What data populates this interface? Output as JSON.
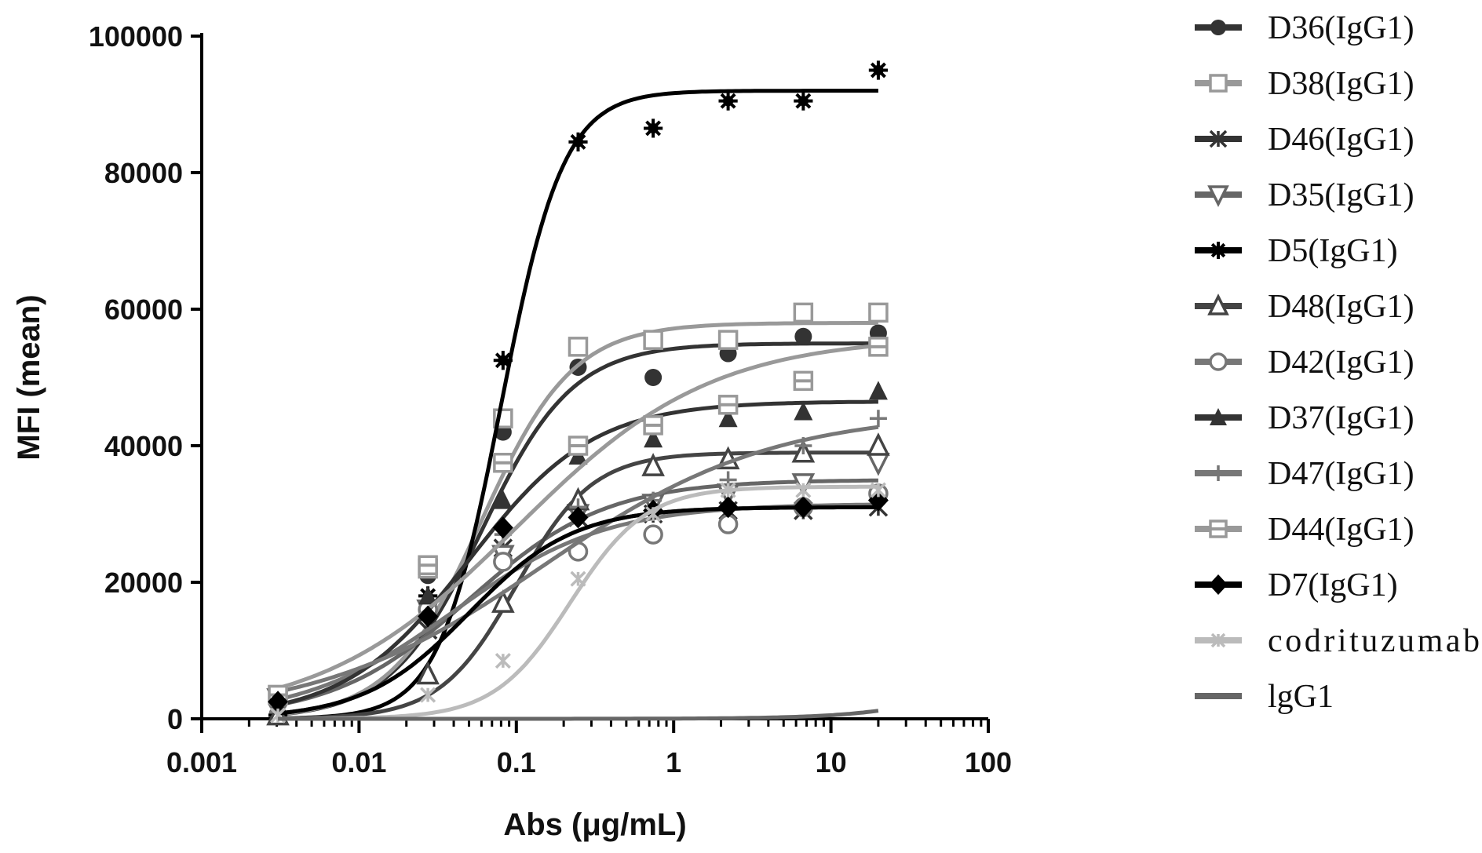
{
  "chart_data": {
    "type": "scatter",
    "title": "",
    "xlabel": "Abs (μg/mL)",
    "ylabel": "MFI (mean)",
    "xscale": "log",
    "xlim": [
      0.001,
      100
    ],
    "ylim": [
      0,
      100000
    ],
    "xticks": [
      "0.001",
      "0.01",
      "0.1",
      "1",
      "10",
      "100"
    ],
    "yticks": [
      "0",
      "20000",
      "40000",
      "60000",
      "80000",
      "100000"
    ],
    "grid": false,
    "legend_position": "right",
    "x": [
      0.00305,
      0.0274,
      0.0823,
      0.247,
      0.741,
      2.22,
      6.67,
      20
    ],
    "series": [
      {
        "name": "D36(IgG1)",
        "marker": "circle",
        "color": "#333333",
        "values": [
          3000,
          21000,
          42000,
          51500,
          50000,
          53500,
          56000,
          56500
        ],
        "fit": {
          "top": 55000,
          "ec50": 0.06,
          "hill": 1.5
        }
      },
      {
        "name": "D38(IgG1)",
        "marker": "square-open",
        "color": "#999999",
        "values": [
          3500,
          22000,
          44000,
          54500,
          55500,
          55500,
          59500,
          59500
        ],
        "fit": {
          "top": 58000,
          "ec50": 0.06,
          "hill": 1.5
        }
      },
      {
        "name": "D46(IgG1)",
        "marker": "star",
        "color": "#333333",
        "values": [
          1000,
          13000,
          25000,
          29500,
          30000,
          30500,
          30500,
          31000
        ],
        "fit": {
          "top": 31000,
          "ec50": 0.05,
          "hill": 1.3
        }
      },
      {
        "name": "D35(IgG1)",
        "marker": "triangle-down-open",
        "color": "#666666",
        "values": [
          3000,
          16000,
          24000,
          30000,
          31500,
          33000,
          34500,
          37500
        ],
        "fit": {
          "top": 35000,
          "ec50": 0.05,
          "hill": 1.0
        }
      },
      {
        "name": "D5(IgG1)",
        "marker": "burst",
        "color": "#000000",
        "values": [
          500,
          18000,
          52500,
          84500,
          86500,
          90500,
          90500,
          95000
        ],
        "fit": {
          "top": 92000,
          "ec50": 0.08,
          "hill": 2.2
        }
      },
      {
        "name": "D48(IgG1)",
        "marker": "triangle-open",
        "color": "#444444",
        "values": [
          500,
          6500,
          17000,
          32000,
          37000,
          38000,
          39000,
          40000
        ],
        "fit": {
          "top": 39000,
          "ec50": 0.1,
          "hill": 1.8
        }
      },
      {
        "name": "D42(IgG1)",
        "marker": "circle-open",
        "color": "#777777",
        "values": [
          2500,
          16000,
          23000,
          24500,
          27000,
          28500,
          31000,
          33000
        ],
        "fit": {
          "top": 31500,
          "ec50": 0.04,
          "hill": 0.9
        }
      },
      {
        "name": "D37(IgG1)",
        "marker": "triangle",
        "color": "#333333",
        "values": [
          2000,
          18000,
          32000,
          38500,
          41000,
          44000,
          45000,
          48000
        ],
        "fit": {
          "top": 46500,
          "ec50": 0.05,
          "hill": 1.1
        }
      },
      {
        "name": "D47(IgG1)",
        "marker": "plus",
        "color": "#777777",
        "values": [
          1000,
          15000,
          27000,
          31000,
          32000,
          35000,
          40000,
          44000
        ],
        "fit": {
          "top": 45000,
          "ec50": 0.15,
          "hill": 0.6
        }
      },
      {
        "name": "D44(IgG1)",
        "marker": "square-half",
        "color": "#999999",
        "values": [
          3500,
          22500,
          37500,
          40000,
          43000,
          46000,
          49500,
          54500
        ],
        "fit": {
          "top": 56000,
          "ec50": 0.1,
          "hill": 0.7
        }
      },
      {
        "name": "D7(IgG1)",
        "marker": "diamond",
        "color": "#000000",
        "values": [
          2500,
          15000,
          28000,
          29500,
          30500,
          31000,
          31000,
          32000
        ],
        "fit": {
          "top": 31000,
          "ec50": 0.05,
          "hill": 1.3
        }
      },
      {
        "name": "codrituzumab",
        "marker": "star-small",
        "color": "#bbbbbb",
        "values": [
          500,
          3500,
          8500,
          20500,
          30000,
          33500,
          33500,
          33500
        ],
        "fit": {
          "top": 34000,
          "ec50": 0.22,
          "hill": 1.8
        }
      },
      {
        "name": "lgG1",
        "marker": "none",
        "color": "#666666",
        "values": [
          0,
          0,
          0,
          0,
          0,
          200,
          800,
          3000
        ],
        "fit": {
          "top": 20000,
          "ec50": 200,
          "hill": 1.2
        }
      }
    ]
  }
}
